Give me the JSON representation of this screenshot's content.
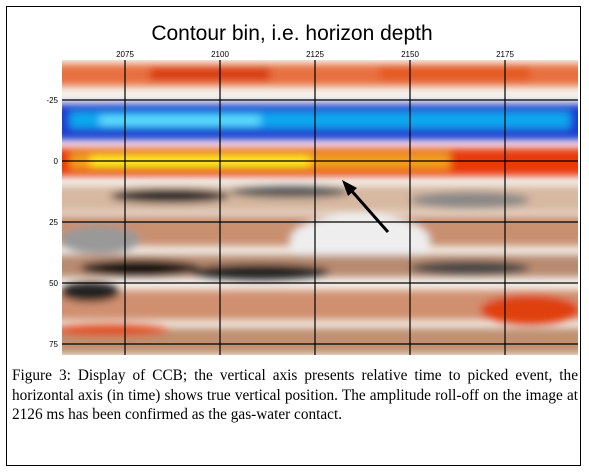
{
  "figure": {
    "title": "Contour bin, i.e. horizon depth",
    "x_ticks": [
      2075,
      2100,
      2125,
      2150,
      2175
    ],
    "y_ticks": [
      -25,
      0,
      25,
      50,
      75
    ]
  },
  "caption": "Figure 3: Display of CCB; the vertical axis presents relative time to picked event, the horizontal axis (in time) shows true vertical position. The amplitude roll-off on the image at 2126 ms has been confirmed as the gas-water contact."
}
